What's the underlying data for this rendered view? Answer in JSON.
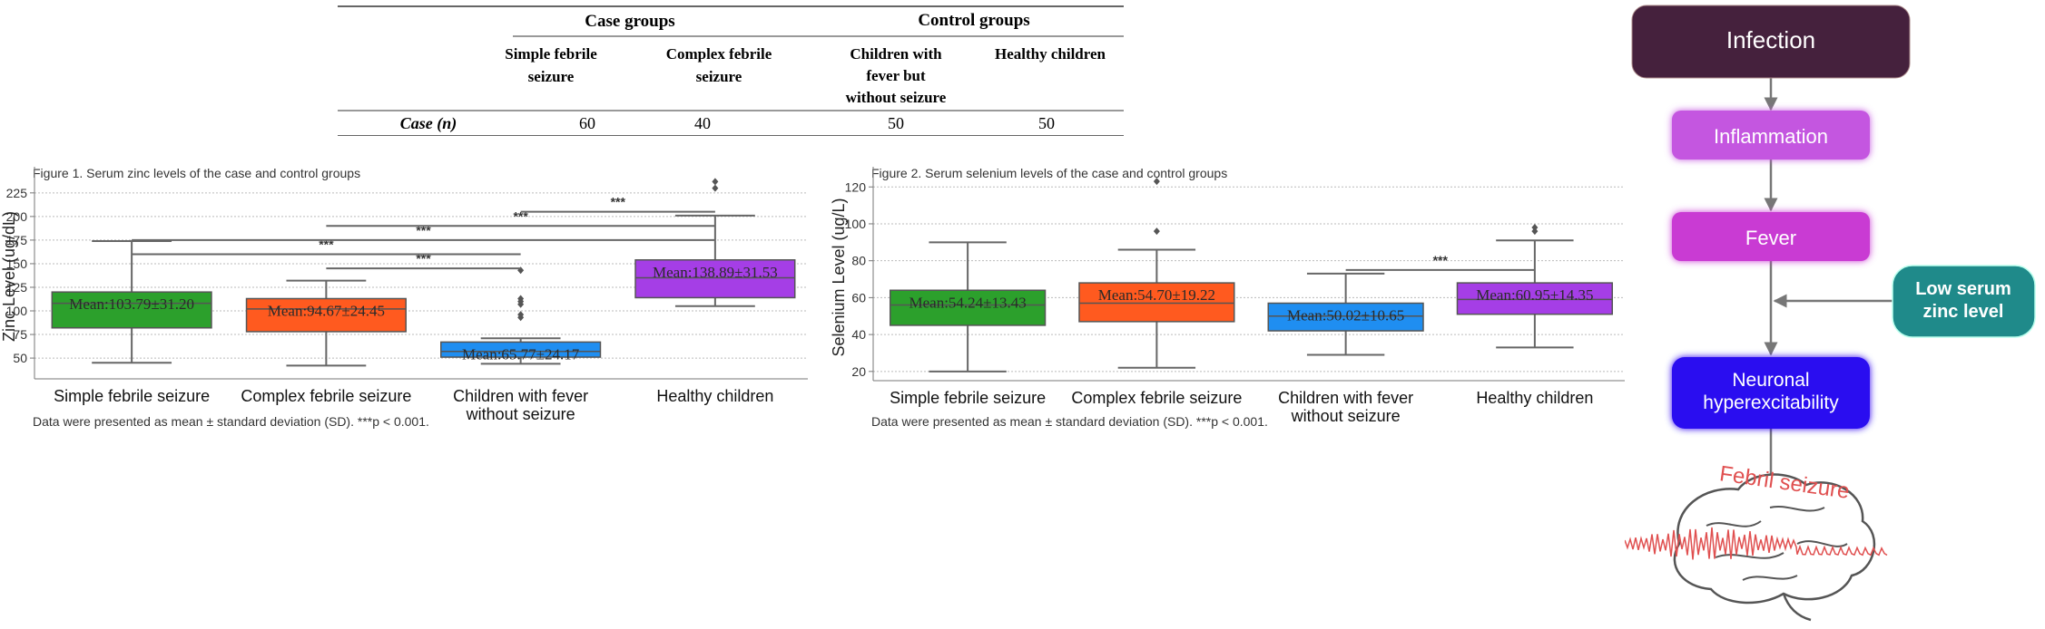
{
  "table": {
    "case_groups_label": "Case groups",
    "control_groups_label": "Control groups",
    "columns": [
      {
        "lines": [
          "Simple febrile",
          "seizure"
        ]
      },
      {
        "lines": [
          "Complex febrile",
          "seizure"
        ]
      },
      {
        "lines": [
          "Children with",
          "fever but",
          "without seizure"
        ]
      },
      {
        "lines": [
          "Healthy children"
        ]
      }
    ],
    "row_label": "Case (n)",
    "row_values": [
      "60",
      "40",
      "50",
      "50"
    ]
  },
  "chart_data": [
    {
      "type": "box",
      "title": "Figure 1. Serum zinc levels of the case and control groups",
      "ylabel": "Zinc Level (ug/dL)",
      "xlabel": "",
      "ylim": [
        28,
        245
      ],
      "yticks": [
        50,
        75,
        100,
        125,
        150,
        175,
        200,
        225
      ],
      "grid": true,
      "categories": [
        [
          "Simple  febrile seizure"
        ],
        [
          "Complex febrile seizure"
        ],
        [
          "Children with fever",
          "without seizure"
        ],
        [
          "Healthy children"
        ]
      ],
      "boxes": [
        {
          "whisker_low": 45,
          "q1": 82,
          "median": 108,
          "q3": 120,
          "whisker_high": 174,
          "outliers": [],
          "color": "#2ca02c",
          "mean_label": "Mean:103.79±31.20"
        },
        {
          "whisker_low": 42,
          "q1": 78,
          "median": 102,
          "q3": 113,
          "whisker_high": 132,
          "outliers": [],
          "color": "#ff5a1f",
          "mean_label": "Mean:94.67±24.45"
        },
        {
          "whisker_low": 44,
          "q1": 51,
          "median": 57,
          "q3": 67,
          "whisker_high": 71,
          "outliers": [
            93,
            96,
            107,
            110,
            113,
            143
          ],
          "color": "#1f8ef1",
          "mean_label": "Mean:65.77±24.17"
        },
        {
          "whisker_low": 105,
          "q1": 114,
          "median": 135,
          "q3": 154,
          "whisker_high": 201,
          "outliers": [
            230,
            237
          ],
          "color": "#a53ee6",
          "mean_label": "Mean:138.89±31.53"
        }
      ],
      "significance": [
        {
          "from": 1,
          "to": 2,
          "y": 145,
          "label": "***"
        },
        {
          "from": 0,
          "to": 2,
          "y": 160,
          "label": "***"
        },
        {
          "from": 0,
          "to": 3,
          "y": 175,
          "label": "***"
        },
        {
          "from": 1,
          "to": 3,
          "y": 190,
          "label": "***"
        },
        {
          "from": 2,
          "to": 3,
          "y": 205,
          "label": "***"
        }
      ],
      "footnote": "Data were presented as mean ± standard deviation (SD). ***p < 0.001."
    },
    {
      "type": "box",
      "title": "Figure 2. Serum selenium levels of the case and control groups",
      "ylabel": "Selenium Level (ug/L)",
      "xlabel": "",
      "ylim": [
        15,
        127
      ],
      "yticks": [
        20,
        40,
        60,
        80,
        100,
        120
      ],
      "grid": true,
      "categories": [
        [
          "Simple  febrile seizure"
        ],
        [
          "Complex febrile seizure"
        ],
        [
          "Children with fever",
          "without seizure"
        ],
        [
          "Healthy children"
        ]
      ],
      "boxes": [
        {
          "whisker_low": 20,
          "q1": 45,
          "median": 56,
          "q3": 64,
          "whisker_high": 90,
          "outliers": [],
          "color": "#2ca02c",
          "mean_label": "Mean:54.24±13.43"
        },
        {
          "whisker_low": 22,
          "q1": 47,
          "median": 57,
          "q3": 68,
          "whisker_high": 86,
          "outliers": [
            96,
            123
          ],
          "color": "#ff5a1f",
          "mean_label": "Mean:54.70±19.22"
        },
        {
          "whisker_low": 29,
          "q1": 42,
          "median": 50,
          "q3": 57,
          "whisker_high": 73,
          "outliers": [],
          "color": "#1f8ef1",
          "mean_label": "Mean:50.02±10.65"
        },
        {
          "whisker_low": 33,
          "q1": 51,
          "median": 59,
          "q3": 68,
          "whisker_high": 91,
          "outliers": [
            96,
            98
          ],
          "color": "#a53ee6",
          "mean_label": "Mean:60.95±14.35"
        }
      ],
      "significance": [
        {
          "from": 2,
          "to": 3,
          "y": 75,
          "label": "***"
        }
      ],
      "footnote": "Data were presented as mean ± standard deviation (SD). ***p < 0.001."
    }
  ],
  "flowchart": {
    "nodes": [
      {
        "id": "infection",
        "lines": [
          "Infection"
        ],
        "color": "#45213d"
      },
      {
        "id": "inflammation",
        "lines": [
          "Inflammation"
        ],
        "color": "#c457e0"
      },
      {
        "id": "fever",
        "lines": [
          "Fever"
        ],
        "color": "#c93bd3"
      },
      {
        "id": "low-zinc",
        "lines": [
          "Low serum",
          "zinc level"
        ],
        "color": "#1f8a8a"
      },
      {
        "id": "neuronal",
        "lines": [
          "Neuronal",
          "hyperexcitability"
        ],
        "color": "#2a0ff0"
      }
    ],
    "brain_label": "Febril seizure",
    "brain_label_color": "#e05050"
  }
}
